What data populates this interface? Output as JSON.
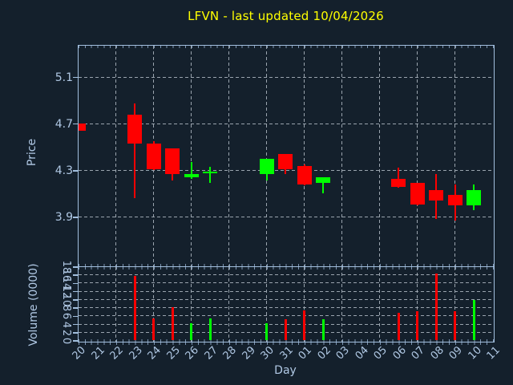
{
  "title": "LFVN - last updated 10/04/2026",
  "colors": {
    "background": "#14202c",
    "axis": "#a2bfde",
    "tick_label": "#b0c8e4",
    "grid": "#9aa4ae",
    "title": "#ffff00",
    "up": "#00ff00",
    "down": "#ff0000"
  },
  "chart_data": [
    {
      "type": "candlestick",
      "title": "LFVN - last updated 10/04/2026",
      "xlabel": "Day",
      "ylabel": "Price",
      "x_categories": [
        "20",
        "21",
        "22",
        "23",
        "24",
        "25",
        "26",
        "27",
        "28",
        "29",
        "30",
        "31",
        "01",
        "02",
        "03",
        "04",
        "05",
        "06",
        "07",
        "08",
        "09",
        "10",
        "11"
      ],
      "ytick_values": [
        3.9,
        4.3,
        4.7,
        5.1
      ],
      "ylim": [
        3.48,
        5.37
      ],
      "grid": "on",
      "candles": [
        {
          "day": "20",
          "open": 4.7,
          "high": 4.7,
          "low": 4.64,
          "close": 4.64
        },
        {
          "day": "23",
          "open": 4.78,
          "high": 4.87,
          "low": 4.06,
          "close": 4.53
        },
        {
          "day": "24",
          "open": 4.53,
          "high": 4.55,
          "low": 4.3,
          "close": 4.31
        },
        {
          "day": "25",
          "open": 4.49,
          "high": 4.49,
          "low": 4.21,
          "close": 4.27
        },
        {
          "day": "26",
          "open": 4.24,
          "high": 4.37,
          "low": 4.23,
          "close": 4.27
        },
        {
          "day": "27",
          "open": 4.29,
          "high": 4.33,
          "low": 4.19,
          "close": 4.29
        },
        {
          "day": "30",
          "open": 4.27,
          "high": 4.4,
          "low": 4.21,
          "close": 4.4
        },
        {
          "day": "31",
          "open": 4.44,
          "high": 4.44,
          "low": 4.27,
          "close": 4.31
        },
        {
          "day": "01",
          "open": 4.34,
          "high": 4.35,
          "low": 4.17,
          "close": 4.18
        },
        {
          "day": "02",
          "open": 4.19,
          "high": 4.24,
          "low": 4.1,
          "close": 4.24
        },
        {
          "day": "06",
          "open": 4.23,
          "high": 4.32,
          "low": 4.15,
          "close": 4.16
        },
        {
          "day": "07",
          "open": 4.19,
          "high": 4.19,
          "low": 4.0,
          "close": 4.01
        },
        {
          "day": "08",
          "open": 4.13,
          "high": 4.27,
          "low": 3.88,
          "close": 4.04
        },
        {
          "day": "09",
          "open": 4.09,
          "high": 4.18,
          "low": 3.87,
          "close": 4.0
        },
        {
          "day": "10",
          "open": 4.0,
          "high": 4.18,
          "low": 3.96,
          "close": 4.13
        }
      ]
    },
    {
      "type": "bar",
      "xlabel": "Day",
      "ylabel": "Volume (0000)",
      "x_categories": [
        "20",
        "21",
        "22",
        "23",
        "24",
        "25",
        "26",
        "27",
        "28",
        "29",
        "30",
        "31",
        "01",
        "02",
        "03",
        "04",
        "05",
        "06",
        "07",
        "08",
        "09",
        "10",
        "11"
      ],
      "ytick_values": [
        0,
        2,
        4,
        6,
        8,
        10,
        12,
        14,
        16,
        18
      ],
      "ylim": [
        0,
        18
      ],
      "grid": "on",
      "bars": [
        {
          "day": "23",
          "value": 15.8,
          "direction": "down"
        },
        {
          "day": "24",
          "value": 5.4,
          "direction": "down"
        },
        {
          "day": "25",
          "value": 8.2,
          "direction": "down"
        },
        {
          "day": "26",
          "value": 4.3,
          "direction": "up"
        },
        {
          "day": "27",
          "value": 5.4,
          "direction": "up"
        },
        {
          "day": "30",
          "value": 4.3,
          "direction": "up"
        },
        {
          "day": "31",
          "value": 5.2,
          "direction": "down"
        },
        {
          "day": "01",
          "value": 7.3,
          "direction": "down"
        },
        {
          "day": "02",
          "value": 5.1,
          "direction": "up"
        },
        {
          "day": "06",
          "value": 6.7,
          "direction": "down"
        },
        {
          "day": "07",
          "value": 7.2,
          "direction": "down"
        },
        {
          "day": "08",
          "value": 16.4,
          "direction": "down"
        },
        {
          "day": "09",
          "value": 7.2,
          "direction": "down"
        },
        {
          "day": "10",
          "value": 9.9,
          "direction": "up"
        }
      ]
    }
  ]
}
